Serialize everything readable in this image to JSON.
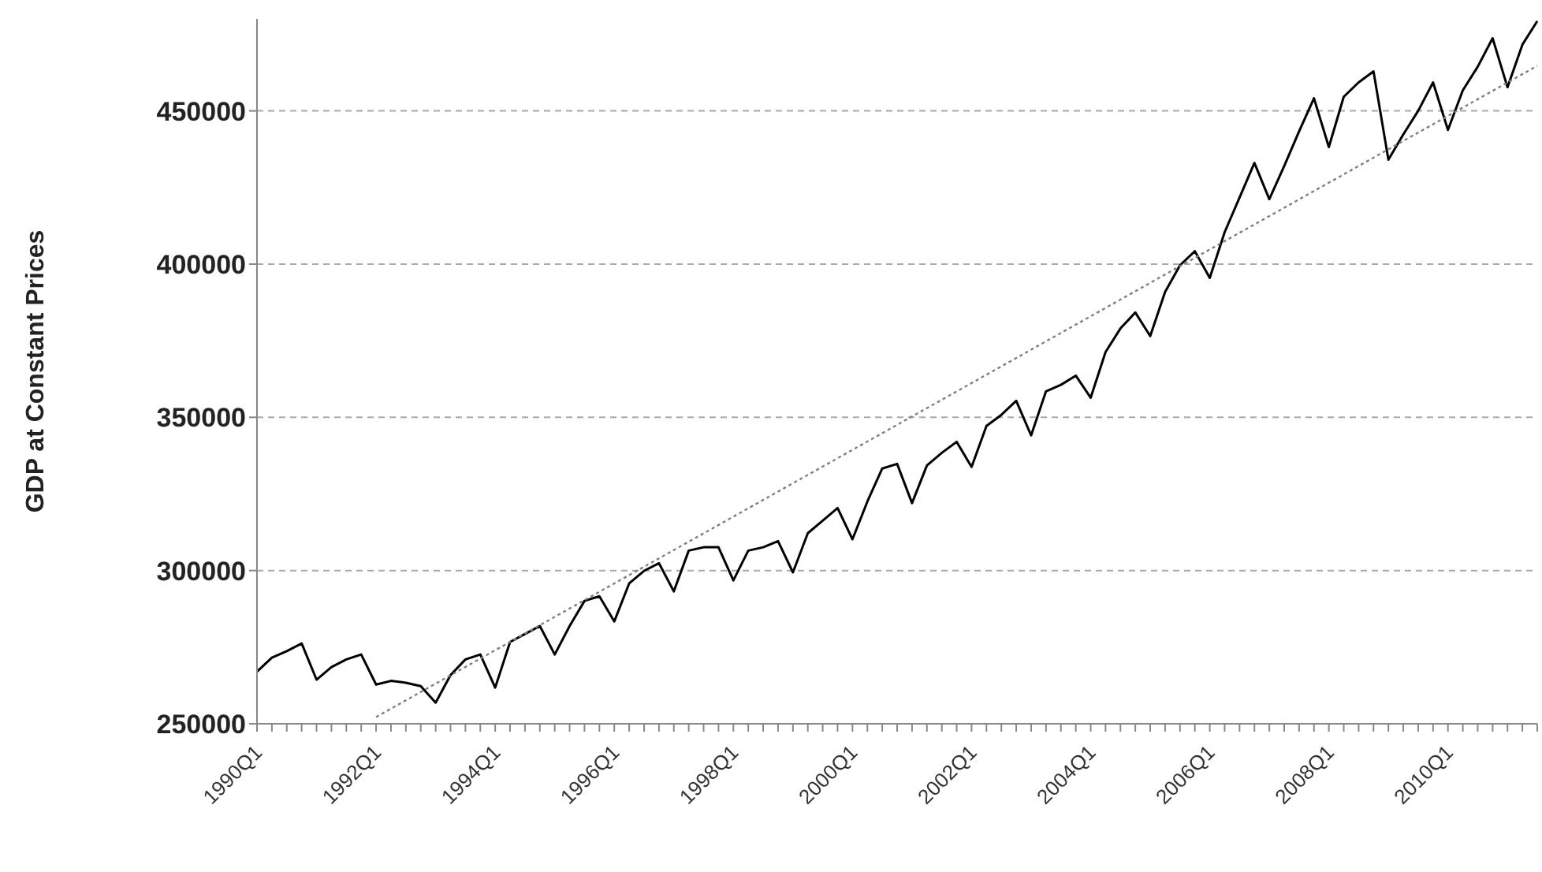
{
  "chart_data": {
    "type": "line",
    "ylabel": "GDP at Constant Prices",
    "categories": [
      "1990Q1",
      null,
      null,
      null,
      null,
      null,
      null,
      null,
      "1992Q1",
      null,
      null,
      null,
      null,
      null,
      null,
      null,
      "1994Q1",
      null,
      null,
      null,
      null,
      null,
      null,
      null,
      "1996Q1",
      null,
      null,
      null,
      null,
      null,
      null,
      null,
      "1998Q1",
      null,
      null,
      null,
      null,
      null,
      null,
      null,
      "2000Q1",
      null,
      null,
      null,
      null,
      null,
      null,
      null,
      "2002Q1",
      null,
      null,
      null,
      null,
      null,
      null,
      null,
      "2004Q1",
      null,
      null,
      null,
      null,
      null,
      null,
      null,
      "2006Q1",
      null,
      null,
      null,
      null,
      null,
      null,
      null,
      "2008Q1",
      null,
      null,
      null,
      null,
      null,
      null,
      null,
      "2010Q1",
      null,
      null,
      null,
      null,
      null,
      null
    ],
    "series": [
      {
        "color": "#000000",
        "line_style": "solid",
        "values": [
          267000,
          271600,
          273700,
          276200,
          264400,
          268500,
          271000,
          272600,
          262800,
          264000,
          263400,
          262300,
          256900,
          265900,
          271000,
          272600,
          261800,
          276700,
          279300,
          281900,
          272600,
          281900,
          290100,
          291600,
          283400,
          295800,
          299900,
          302400,
          293200,
          306500,
          307600,
          307600,
          296800,
          306500,
          307600,
          309600,
          299400,
          312200,
          316300,
          320400,
          310200,
          322500,
          333300,
          334800,
          322000,
          334300,
          338400,
          342000,
          333800,
          347200,
          350800,
          355400,
          344100,
          358500,
          360600,
          363600,
          356400,
          371300,
          379000,
          384200,
          376500,
          390900,
          399600,
          404200,
          395500,
          410400,
          421700,
          433000,
          421200,
          432000,
          443300,
          454100,
          438200,
          454600,
          459300,
          462900,
          434100,
          442300,
          450000,
          459300,
          443800,
          456700,
          464400,
          473700,
          457700,
          471600,
          479300
        ]
      },
      {
        "color": "#808080",
        "line_style": "dotted",
        "values": [
          null,
          null,
          null,
          null,
          null,
          null,
          null,
          null,
          252200,
          null,
          null,
          null,
          null,
          null,
          null,
          null,
          null,
          null,
          null,
          null,
          null,
          null,
          null,
          null,
          null,
          null,
          null,
          null,
          null,
          null,
          null,
          null,
          null,
          null,
          null,
          null,
          null,
          null,
          null,
          null,
          null,
          null,
          null,
          null,
          null,
          null,
          null,
          null,
          null,
          null,
          null,
          null,
          null,
          null,
          null,
          null,
          null,
          null,
          null,
          null,
          null,
          null,
          null,
          null,
          null,
          null,
          null,
          null,
          null,
          null,
          null,
          null,
          null,
          null,
          null,
          null,
          null,
          null,
          null,
          null,
          null,
          null,
          null,
          null,
          null,
          null,
          464700
        ]
      }
    ],
    "ylim": [
      250000,
      480000
    ],
    "yticks": [
      250000,
      300000,
      350000,
      400000,
      450000
    ],
    "grid": "y",
    "marker": "none"
  }
}
